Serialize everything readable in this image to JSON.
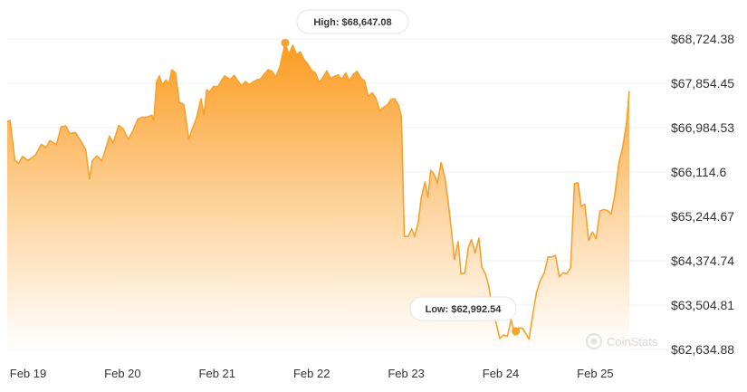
{
  "chart_data": {
    "type": "area",
    "title": "",
    "xlabel": "",
    "ylabel": "",
    "x_ticks": [
      "Feb 19",
      "Feb 20",
      "Feb 21",
      "Feb 22",
      "Feb 23",
      "Feb 24",
      "Feb 25"
    ],
    "y_ticks": [
      "$68,724.38",
      "$67,854.45",
      "$66,984.53",
      "$66,114.6",
      "$65,244.67",
      "$64,374.74",
      "$63,504.81",
      "$62,634.88"
    ],
    "y_tick_values": [
      68724.38,
      67854.45,
      66984.53,
      66114.6,
      65244.67,
      64374.74,
      63504.81,
      62634.88
    ],
    "ylim": [
      62634.88,
      68724.38
    ],
    "x_range_days": [
      0,
      6.85
    ],
    "grid": "horizontal",
    "colors": {
      "line": "#f7a12e",
      "fill_top": "#fb9b1f",
      "fill_bottom": "#ffffff",
      "grid": "#efefef",
      "marker": "#f7a12e"
    },
    "high": {
      "label": "High: $68,647.08",
      "value": 68647.08,
      "day": 2.94
    },
    "low": {
      "label": "Low: $62,992.54",
      "value": 62992.54,
      "day": 5.38
    },
    "watermark": "CoinStats",
    "series": [
      {
        "values": [
          [
            0.0,
            67100
          ],
          [
            0.03,
            67130
          ],
          [
            0.08,
            66350
          ],
          [
            0.12,
            66280
          ],
          [
            0.16,
            66420
          ],
          [
            0.22,
            66340
          ],
          [
            0.3,
            66450
          ],
          [
            0.36,
            66660
          ],
          [
            0.41,
            66590
          ],
          [
            0.45,
            66730
          ],
          [
            0.52,
            66650
          ],
          [
            0.57,
            67000
          ],
          [
            0.62,
            67020
          ],
          [
            0.66,
            66870
          ],
          [
            0.72,
            66890
          ],
          [
            0.78,
            66720
          ],
          [
            0.83,
            66550
          ],
          [
            0.87,
            65980
          ],
          [
            0.9,
            66340
          ],
          [
            0.95,
            66430
          ],
          [
            1.0,
            66330
          ],
          [
            1.05,
            66620
          ],
          [
            1.08,
            66820
          ],
          [
            1.12,
            66680
          ],
          [
            1.18,
            67030
          ],
          [
            1.23,
            66950
          ],
          [
            1.28,
            66750
          ],
          [
            1.33,
            66930
          ],
          [
            1.38,
            67150
          ],
          [
            1.43,
            67190
          ],
          [
            1.48,
            67190
          ],
          [
            1.53,
            67230
          ],
          [
            1.55,
            67120
          ],
          [
            1.58,
            67890
          ],
          [
            1.61,
            68000
          ],
          [
            1.64,
            67820
          ],
          [
            1.68,
            67920
          ],
          [
            1.71,
            67830
          ],
          [
            1.74,
            68120
          ],
          [
            1.78,
            68060
          ],
          [
            1.82,
            67490
          ],
          [
            1.87,
            67430
          ],
          [
            1.92,
            66760
          ],
          [
            1.96,
            66970
          ],
          [
            2.0,
            67160
          ],
          [
            2.05,
            67550
          ],
          [
            2.08,
            67230
          ],
          [
            2.11,
            67730
          ],
          [
            2.14,
            67680
          ],
          [
            2.18,
            67790
          ],
          [
            2.23,
            67790
          ],
          [
            2.27,
            67920
          ],
          [
            2.3,
            68000
          ],
          [
            2.33,
            67960
          ],
          [
            2.36,
            67930
          ],
          [
            2.4,
            68010
          ],
          [
            2.44,
            67900
          ],
          [
            2.48,
            67810
          ],
          [
            2.52,
            67890
          ],
          [
            2.56,
            67830
          ],
          [
            2.6,
            67880
          ],
          [
            2.64,
            67920
          ],
          [
            2.68,
            67940
          ],
          [
            2.72,
            68040
          ],
          [
            2.76,
            68120
          ],
          [
            2.8,
            68090
          ],
          [
            2.84,
            67980
          ],
          [
            2.88,
            68160
          ],
          [
            2.92,
            68470
          ],
          [
            2.94,
            68647
          ],
          [
            2.98,
            68420
          ],
          [
            3.02,
            68600
          ],
          [
            3.06,
            68420
          ],
          [
            3.1,
            68470
          ],
          [
            3.14,
            68320
          ],
          [
            3.18,
            68230
          ],
          [
            3.22,
            68110
          ],
          [
            3.26,
            68060
          ],
          [
            3.3,
            67870
          ],
          [
            3.34,
            67970
          ],
          [
            3.38,
            68100
          ],
          [
            3.42,
            67950
          ],
          [
            3.46,
            67990
          ],
          [
            3.5,
            68020
          ],
          [
            3.54,
            67930
          ],
          [
            3.58,
            68060
          ],
          [
            3.62,
            67900
          ],
          [
            3.66,
            68030
          ],
          [
            3.7,
            68090
          ],
          [
            3.74,
            67960
          ],
          [
            3.78,
            67900
          ],
          [
            3.82,
            67590
          ],
          [
            3.86,
            67670
          ],
          [
            3.9,
            67560
          ],
          [
            3.94,
            67320
          ],
          [
            3.98,
            67380
          ],
          [
            4.02,
            67430
          ],
          [
            4.06,
            67540
          ],
          [
            4.1,
            67550
          ],
          [
            4.14,
            67420
          ],
          [
            4.17,
            67200
          ],
          [
            4.2,
            64850
          ],
          [
            4.24,
            64850
          ],
          [
            4.28,
            65000
          ],
          [
            4.31,
            64850
          ],
          [
            4.35,
            65150
          ],
          [
            4.38,
            65620
          ],
          [
            4.42,
            65920
          ],
          [
            4.45,
            65620
          ],
          [
            4.48,
            66150
          ],
          [
            4.52,
            66050
          ],
          [
            4.55,
            65890
          ],
          [
            4.59,
            66300
          ],
          [
            4.63,
            66000
          ],
          [
            4.66,
            65600
          ],
          [
            4.7,
            64950
          ],
          [
            4.73,
            64400
          ],
          [
            4.77,
            64750
          ],
          [
            4.8,
            64120
          ],
          [
            4.84,
            64130
          ],
          [
            4.88,
            64650
          ],
          [
            4.91,
            64790
          ],
          [
            4.95,
            64530
          ],
          [
            4.99,
            64820
          ],
          [
            5.02,
            64250
          ],
          [
            5.06,
            64110
          ],
          [
            5.09,
            63910
          ],
          [
            5.13,
            63460
          ],
          [
            5.17,
            63170
          ],
          [
            5.21,
            62850
          ],
          [
            5.25,
            62920
          ],
          [
            5.29,
            62890
          ],
          [
            5.33,
            63220
          ],
          [
            5.37,
            62920
          ],
          [
            5.41,
            63060
          ],
          [
            5.45,
            63050
          ],
          [
            5.49,
            62930
          ],
          [
            5.52,
            62840
          ],
          [
            5.56,
            63330
          ],
          [
            5.6,
            63760
          ],
          [
            5.64,
            63990
          ],
          [
            5.68,
            64130
          ],
          [
            5.72,
            64450
          ],
          [
            5.76,
            64450
          ],
          [
            5.8,
            64480
          ],
          [
            5.84,
            64060
          ],
          [
            5.88,
            64140
          ],
          [
            5.92,
            64120
          ],
          [
            5.96,
            64240
          ],
          [
            6.0,
            65890
          ],
          [
            6.04,
            65900
          ],
          [
            6.07,
            65440
          ],
          [
            6.11,
            65480
          ],
          [
            6.15,
            64770
          ],
          [
            6.19,
            64940
          ],
          [
            6.23,
            64810
          ],
          [
            6.27,
            65350
          ],
          [
            6.31,
            65380
          ],
          [
            6.35,
            65360
          ],
          [
            6.39,
            65290
          ],
          [
            6.43,
            65700
          ],
          [
            6.47,
            66290
          ],
          [
            6.51,
            66590
          ],
          [
            6.55,
            67050
          ],
          [
            6.58,
            67700
          ]
        ]
      }
    ]
  }
}
